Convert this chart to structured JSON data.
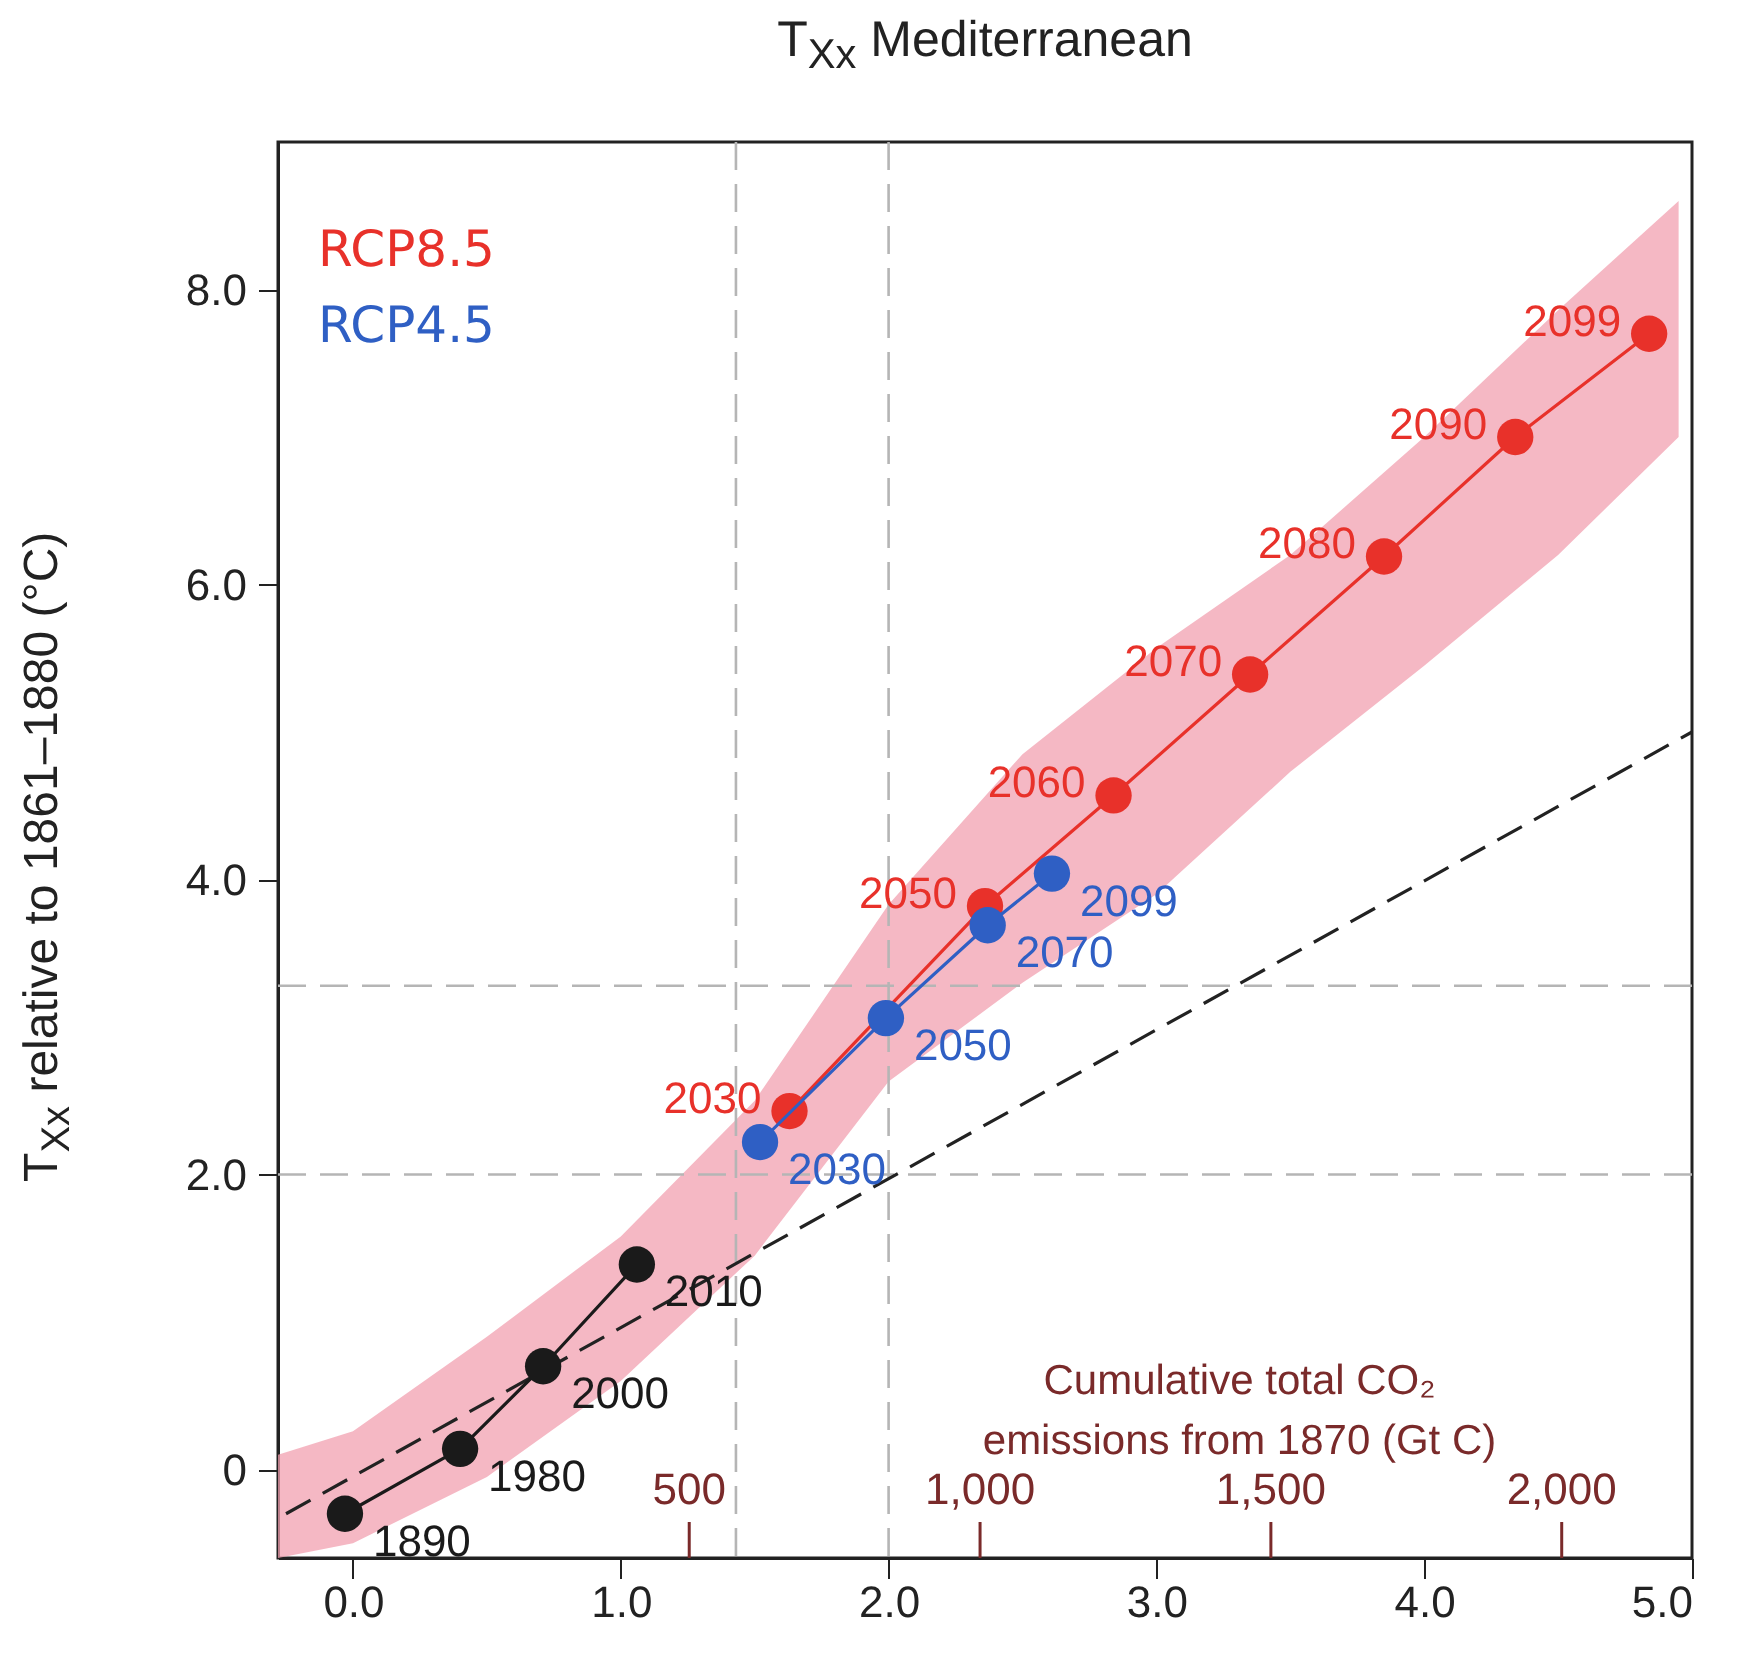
{
  "chart_data": {
    "type": "line",
    "title": "T$_{Xx}$ Mediterranean",
    "ylabel": "T$_{Xx}$ relative to 1861–1880 (°C)",
    "x2label": "Cumulative total CO₂ emissions from 1870 (Gt C)",
    "xlim": [
      -0.28,
      5.0
    ],
    "xticks": [
      {
        "value": 0,
        "label": "0.0"
      },
      {
        "value": 1,
        "label": "1.0"
      },
      {
        "value": 2,
        "label": "2.0"
      },
      {
        "value": 3,
        "label": "3.0"
      },
      {
        "value": 4,
        "label": "4.0"
      },
      {
        "value": 5,
        "label": "5.0"
      }
    ],
    "ylim": [
      -0.6,
      9.0
    ],
    "yticks": [
      0,
      {
        "value": 2,
        "label": "2.0"
      },
      {
        "value": 4,
        "label": "4.0"
      },
      {
        "value": 6,
        "label": "6.0"
      },
      {
        "value": 8,
        "label": "8.0"
      }
    ],
    "x2lim": [
      -207,
      2224
    ],
    "x2ticks": [
      500,
      {
        "value": 1000,
        "label": "1,000"
      },
      {
        "value": 1500,
        "label": "1,500"
      },
      {
        "value": 2000,
        "label": "2,000"
      }
    ],
    "marker": "circle",
    "line_style": "solid",
    "legend": "top left",
    "ref_lines": [
      {
        "axis": "x",
        "value": 1.43,
        "color": "#b5b5b5",
        "line_style": "dashed"
      },
      {
        "axis": "x",
        "value": 2.0,
        "color": "#b5b5b5",
        "line_style": "dashed"
      },
      {
        "axis": "y",
        "value": 2.0,
        "color": "#b5b5b5",
        "line_style": "dashed"
      },
      {
        "axis": "y",
        "value": 3.28,
        "color": "#b5b5b5",
        "line_style": "dashed"
      }
    ],
    "annotations": [
      {
        "text": "1890",
        "x": -0.03,
        "y": -0.3
      },
      {
        "text": "1980",
        "x": 0.4,
        "y": 0.14
      },
      {
        "text": "2000",
        "x": 0.71,
        "y": 0.7
      },
      {
        "text": "2010",
        "x": 1.06,
        "y": 1.39
      },
      {
        "text": "2030",
        "x": 1.63,
        "y": 2.43
      },
      {
        "text": "2050",
        "x": 2.36,
        "y": 3.82
      },
      {
        "text": "2060",
        "x": 2.84,
        "y": 4.57
      },
      {
        "text": "2070",
        "x": 3.35,
        "y": 5.39
      },
      {
        "text": "2080",
        "x": 3.85,
        "y": 6.19
      },
      {
        "text": "2090",
        "x": 4.34,
        "y": 7.0
      },
      {
        "text": "2099",
        "x": 4.84,
        "y": 7.7
      },
      {
        "text": "2030",
        "x": 1.52,
        "y": 2.22
      },
      {
        "text": "2050",
        "x": 1.99,
        "y": 3.06
      },
      {
        "text": "2070",
        "x": 2.37,
        "y": 3.69
      },
      {
        "text": "2099",
        "x": 2.61,
        "y": 4.04
      }
    ],
    "series": [
      {
        "color": "#f2a0b0",
        "x": [
          -0.28,
          0,
          0.5,
          1.0,
          1.5,
          2.0,
          2.5,
          3.0,
          3.5,
          4.0,
          4.5,
          4.95
        ],
        "values": [
          null,
          null,
          null,
          null,
          null,
          null,
          null,
          null,
          null,
          null,
          null,
          null
        ],
        "lower": [
          -0.6,
          -0.5,
          -0.05,
          0.6,
          1.45,
          2.63,
          3.3,
          3.9,
          4.73,
          5.45,
          6.2,
          7.0
        ],
        "upper": [
          0.1,
          0.26,
          0.9,
          1.58,
          2.5,
          3.83,
          4.85,
          5.57,
          6.2,
          7.0,
          7.86,
          8.6
        ],
        "marker": "none"
      },
      {
        "color": "#222222",
        "x": [
          -0.25,
          5.0
        ],
        "values": [
          -0.3,
          5.0
        ],
        "marker": "none",
        "line_style": "dashed"
      },
      {
        "color": "#1a1a1a",
        "x": [
          -0.03,
          0.4,
          0.71,
          1.06
        ],
        "values": [
          -0.3,
          0.14,
          0.7,
          1.39
        ]
      },
      {
        "name": "RCP8.5",
        "color": "#e8312a",
        "x": [
          1.63,
          2.36,
          2.84,
          3.35,
          3.85,
          4.34,
          4.84
        ],
        "values": [
          2.43,
          3.82,
          4.57,
          5.39,
          6.19,
          7.0,
          7.7
        ]
      },
      {
        "name": "RCP4.5",
        "color": "#2f5fc4",
        "x": [
          1.52,
          1.99,
          2.37,
          2.61
        ],
        "values": [
          2.22,
          3.06,
          3.69,
          4.04
        ]
      }
    ]
  }
}
